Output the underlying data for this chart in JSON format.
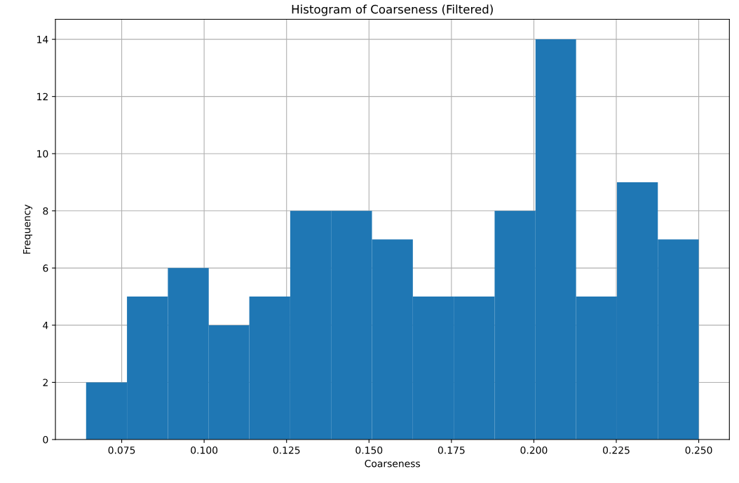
{
  "chart_data": {
    "type": "histogram",
    "title": "Histogram of Coarseness (Filtered)",
    "xlabel": "Coarseness",
    "ylabel": "Frequency",
    "bins": [
      0.0642,
      0.0766,
      0.089,
      0.1014,
      0.1137,
      0.1261,
      0.1385,
      0.1509,
      0.1633,
      0.1757,
      0.1881,
      0.2005,
      0.2128,
      0.2252,
      0.2376,
      0.25
    ],
    "values": [
      2,
      5,
      6,
      4,
      5,
      8,
      8,
      7,
      5,
      5,
      8,
      14,
      5,
      9,
      7
    ],
    "color": "#1f77b4",
    "xlim": [
      0.0549,
      0.2593
    ],
    "xticks": [
      {
        "value": 0.075,
        "label": "0.075"
      },
      {
        "value": 0.1,
        "label": "0.100"
      },
      {
        "value": 0.125,
        "label": "0.125"
      },
      {
        "value": 0.15,
        "label": "0.150"
      },
      {
        "value": 0.175,
        "label": "0.175"
      },
      {
        "value": 0.2,
        "label": "0.200"
      },
      {
        "value": 0.225,
        "label": "0.225"
      },
      {
        "value": 0.25,
        "label": "0.250"
      }
    ],
    "ylim": [
      0,
      14.7
    ],
    "yticks": [
      0,
      2,
      4,
      6,
      8,
      10,
      12,
      14
    ],
    "grid": true
  }
}
